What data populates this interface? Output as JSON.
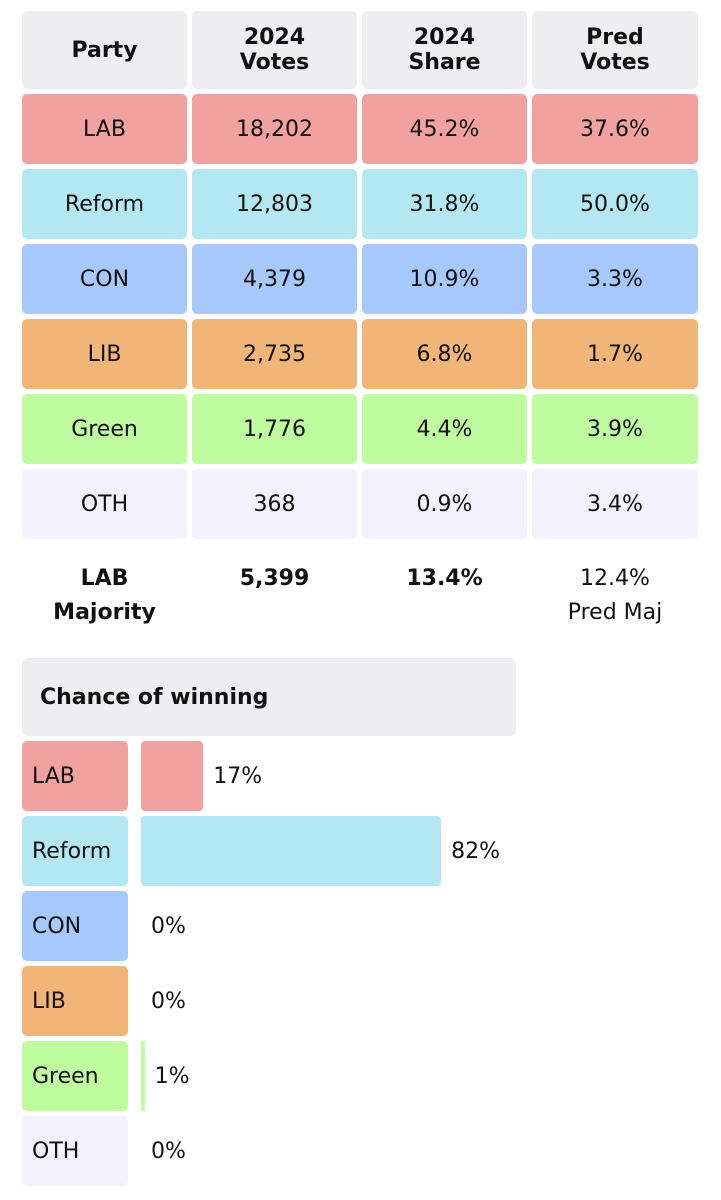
{
  "chart_data": [
    {
      "type": "table",
      "columns": [
        "Party",
        "2024\nVotes",
        "2024\nShare",
        "Pred\nVotes"
      ],
      "rows": [
        {
          "party": "LAB",
          "votes_2024": "18,202",
          "share_2024": "45.2%",
          "pred_votes": "37.6%",
          "color": "#f0a1a0"
        },
        {
          "party": "Reform",
          "votes_2024": "12,803",
          "share_2024": "31.8%",
          "pred_votes": "50.0%",
          "color": "#b3e8f3"
        },
        {
          "party": "CON",
          "votes_2024": "4,379",
          "share_2024": "10.9%",
          "pred_votes": "3.3%",
          "color": "#a7c8fa"
        },
        {
          "party": "LIB",
          "votes_2024": "2,735",
          "share_2024": "6.8%",
          "pred_votes": "1.7%",
          "color": "#f1b578"
        },
        {
          "party": "Green",
          "votes_2024": "1,776",
          "share_2024": "4.4%",
          "pred_votes": "3.9%",
          "color": "#bffb9f"
        },
        {
          "party": "OTH",
          "votes_2024": "368",
          "share_2024": "0.9%",
          "pred_votes": "3.4%",
          "color": "#f3f2fc"
        }
      ],
      "footer": {
        "label": "LAB\nMajority",
        "votes": "5,399",
        "share": "13.4%",
        "pred": "12.4%\nPred Maj"
      }
    },
    {
      "type": "bar",
      "title": "Chance of winning",
      "categories": [
        "LAB",
        "Reform",
        "CON",
        "LIB",
        "Green",
        "OTH"
      ],
      "values": [
        17,
        82,
        0,
        0,
        1,
        0
      ],
      "value_labels": [
        "17%",
        "82%",
        "0%",
        "0%",
        "1%",
        "0%"
      ],
      "colors": [
        "#f0a1a0",
        "#b3e8f3",
        "#a7c8fa",
        "#f1b578",
        "#bffb9f",
        "#f3f2fc"
      ],
      "xlim": [
        0,
        100
      ]
    }
  ]
}
